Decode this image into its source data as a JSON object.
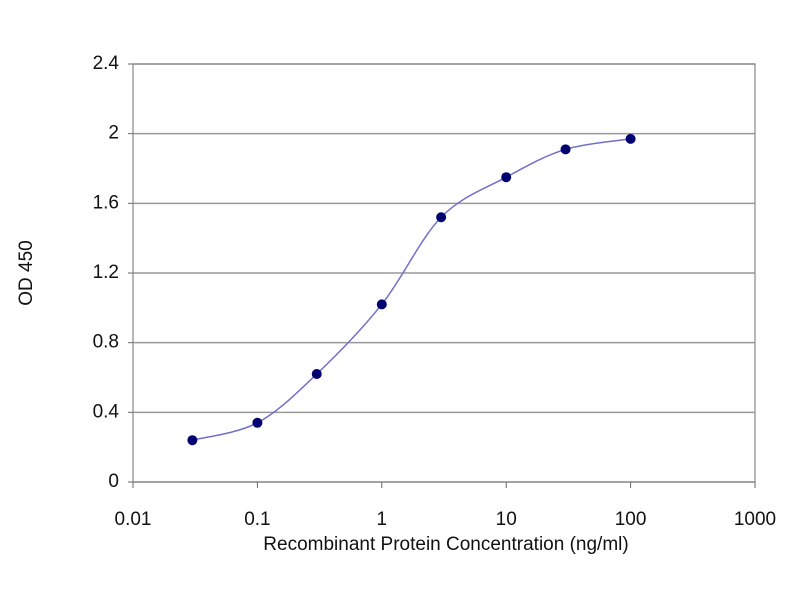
{
  "chart_data": {
    "type": "line",
    "xlabel": "Recombinant Protein Concentration (ng/ml)",
    "ylabel": "OD 450",
    "x": [
      0.03,
      0.1,
      0.3,
      1,
      3,
      10,
      30,
      100
    ],
    "values": [
      0.24,
      0.34,
      0.62,
      1.02,
      1.52,
      1.75,
      1.91,
      1.97
    ],
    "color": "#7070c8",
    "marker_color": "#000070",
    "xscale": "log",
    "xlim": [
      0.01,
      1000
    ],
    "xticks": [
      0.01,
      0.1,
      1,
      10,
      100,
      1000
    ],
    "ylim": [
      0,
      2.4
    ],
    "yticks": [
      0,
      0.4,
      0.8,
      1.2,
      1.6,
      2,
      2.4
    ],
    "grid": true
  }
}
